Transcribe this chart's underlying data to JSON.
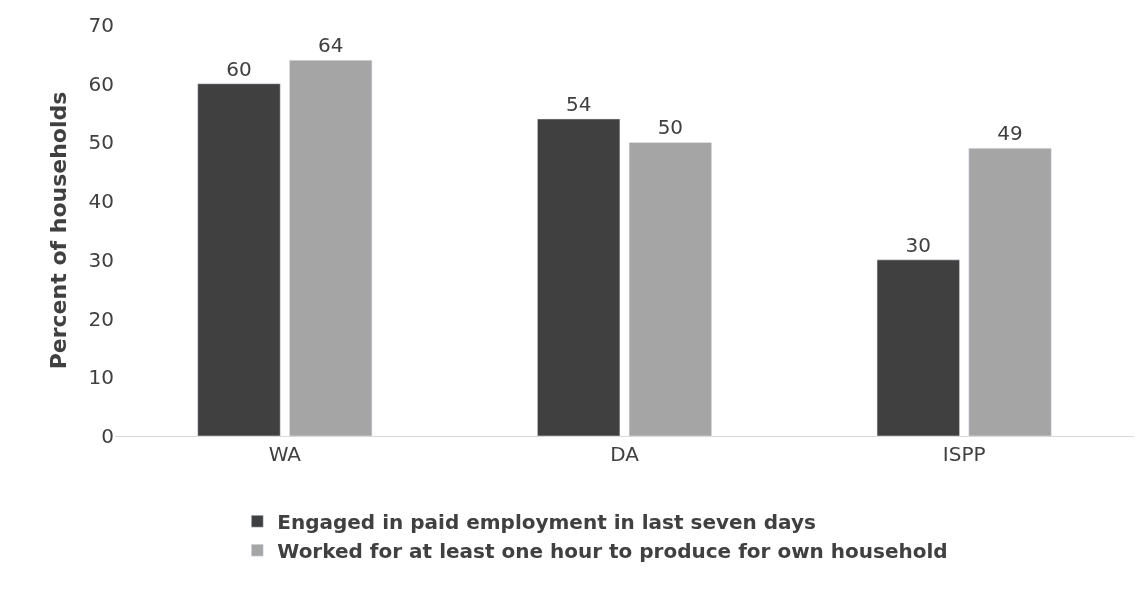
{
  "chart_data": {
    "type": "bar",
    "ylabel": "Percent of households",
    "categories": [
      "WA",
      "DA",
      "ISPP"
    ],
    "series": [
      {
        "name": "Engaged in paid employment in last seven days",
        "color": "#404040",
        "values": [
          60,
          54,
          30
        ]
      },
      {
        "name": "Worked for at least one hour to produce for own household",
        "color": "#a5a5a5",
        "values": [
          64,
          50,
          49
        ]
      }
    ],
    "ylim": [
      0,
      70
    ],
    "yticks": [
      0,
      10,
      20,
      30,
      40,
      50,
      60,
      70
    ],
    "legend": "bottom",
    "data_labels": true
  }
}
